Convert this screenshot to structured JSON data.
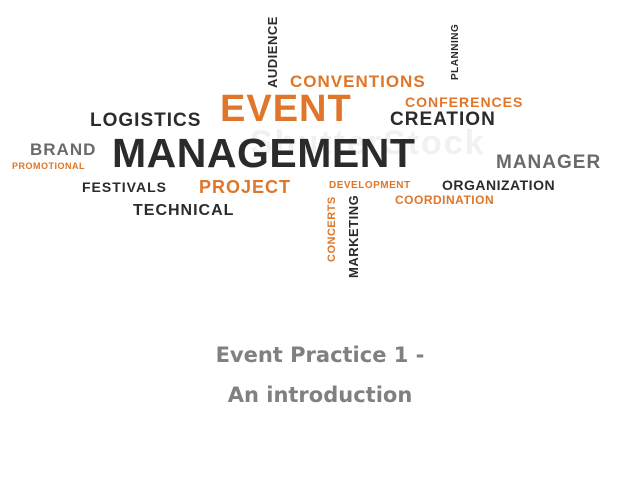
{
  "colors": {
    "accent": "#e0762a",
    "dark": "#2b2b2b",
    "grey": "#6a6a6a",
    "title": "#808080"
  },
  "word_cloud": {
    "audience": "AUDIENCE",
    "planning": "PLANNING",
    "conventions": "CONVENTIONS",
    "event": "EVENT",
    "conferences": "CONFERENCES",
    "logistics": "LOGISTICS",
    "creation": "CREATION",
    "brand": "BRAND",
    "promotional": "PROMOTIONAL",
    "management": "MANAGEMENT",
    "manager": "MANAGER",
    "festivals": "FESTIVALS",
    "project": "PROJECT",
    "development": "DEVELOPMENT",
    "organization": "ORGANIZATION",
    "coordination": "COORDINATION",
    "technical": "TECHNICAL",
    "concerts": "CONCERTS",
    "marketing": "MARKETING"
  },
  "slide": {
    "title_line1": "Event Practice 1 -",
    "title_line2": "An introduction"
  }
}
